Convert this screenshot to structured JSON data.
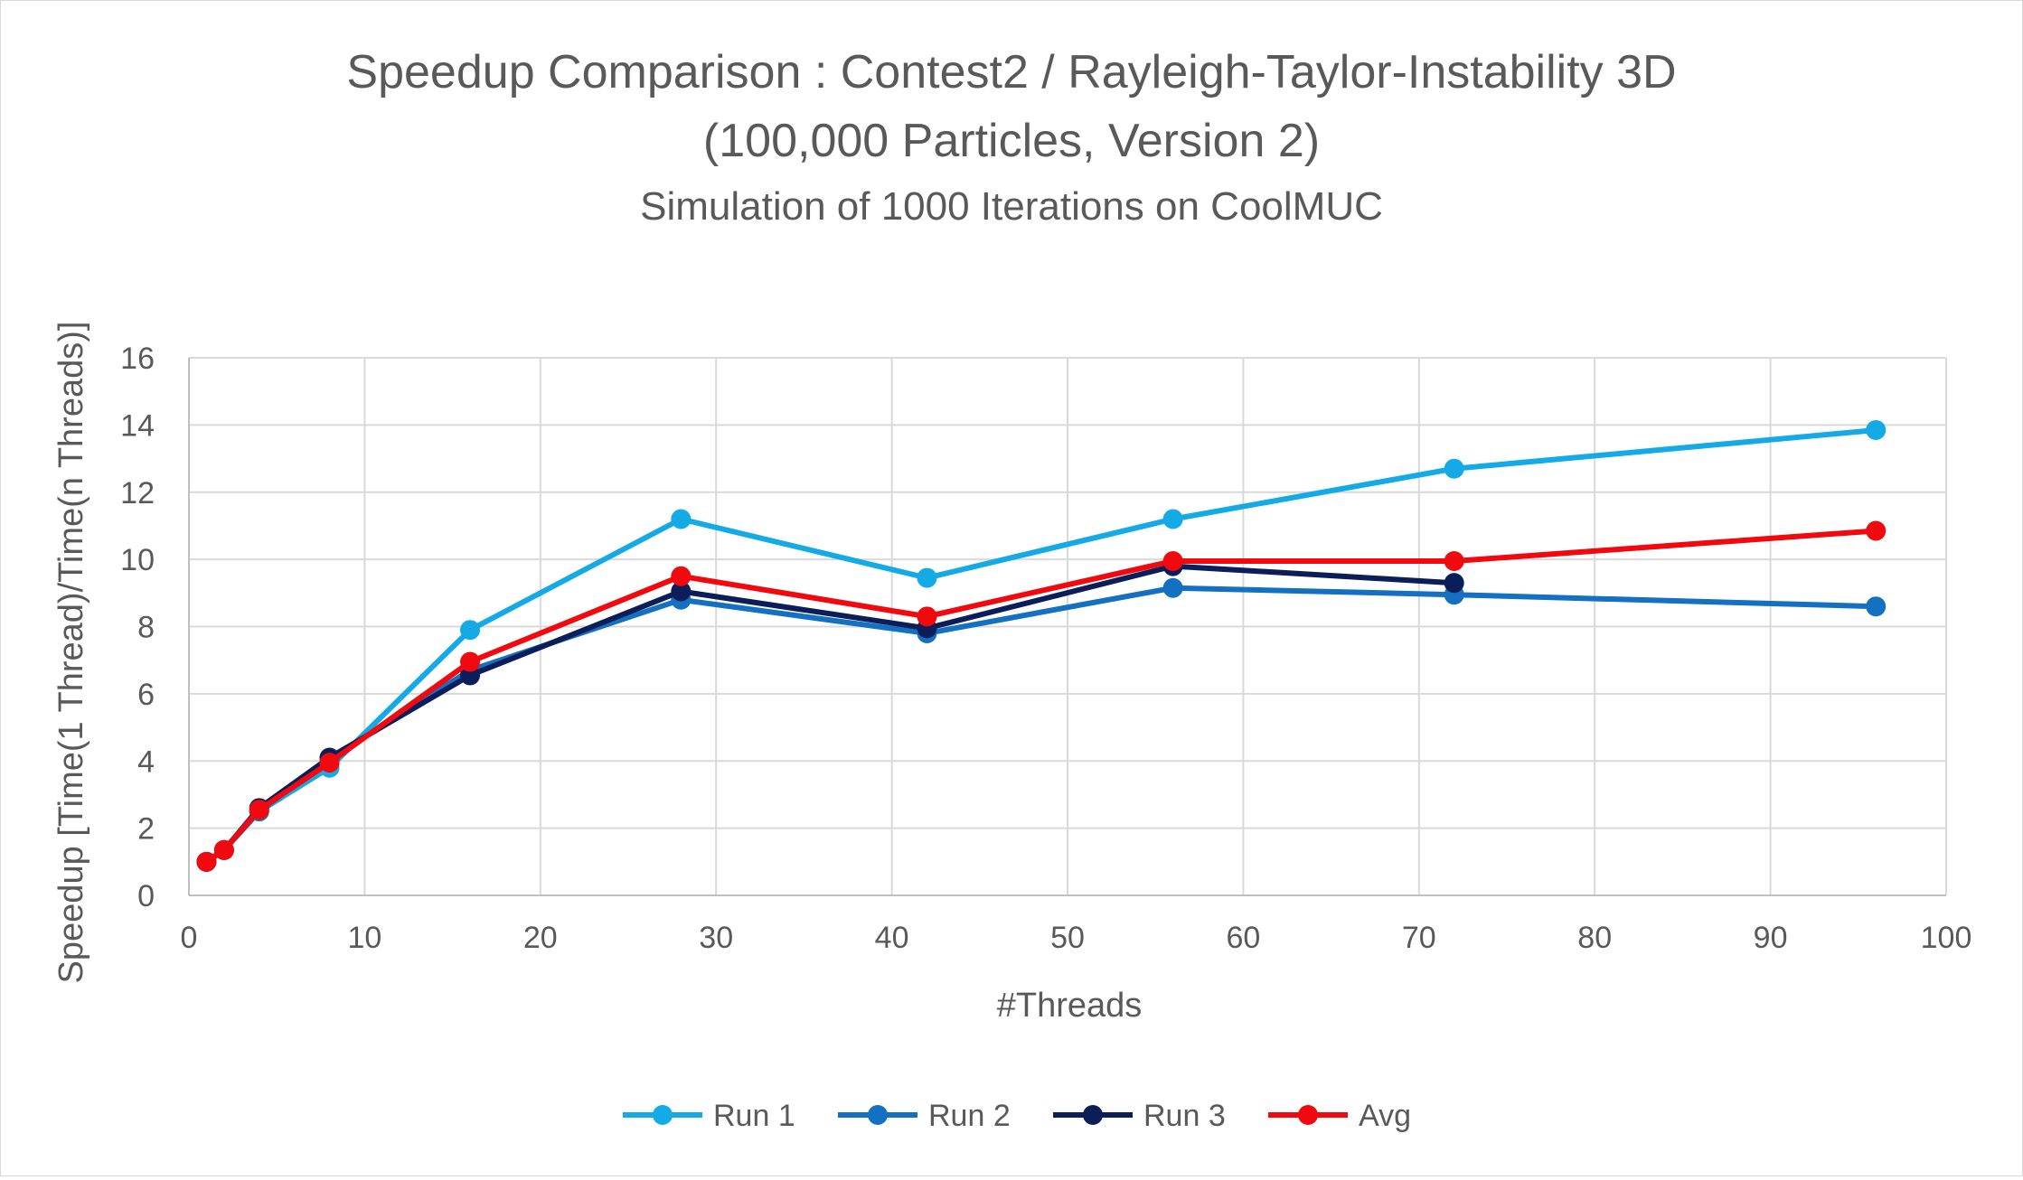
{
  "chart_data": {
    "type": "line",
    "title": "Speedup Comparison : Contest2 / Rayleigh-Taylor-Instability 3D",
    "title_line2": "(100,000 Particles, Version 2)",
    "subtitle": "Simulation of 1000 Iterations on CoolMUC",
    "xlabel": "#Threads",
    "ylabel": "Speedup [Time(1 Thread)/Time(n Threads)]",
    "xlim": [
      0,
      100
    ],
    "ylim": [
      0,
      16
    ],
    "x_ticks": [
      0,
      10,
      20,
      30,
      40,
      50,
      60,
      70,
      80,
      90,
      100
    ],
    "y_ticks": [
      0,
      2,
      4,
      6,
      8,
      10,
      12,
      14,
      16
    ],
    "grid": true,
    "legend_position": "bottom",
    "series": [
      {
        "name": "Run 1",
        "color": "#14aae6",
        "points": [
          [
            1,
            1.0
          ],
          [
            2,
            1.35
          ],
          [
            4,
            2.5
          ],
          [
            8,
            3.8
          ],
          [
            16,
            7.9
          ],
          [
            28,
            11.2
          ],
          [
            42,
            9.45
          ],
          [
            56,
            11.2
          ],
          [
            72,
            12.7
          ],
          [
            96,
            13.85
          ]
        ]
      },
      {
        "name": "Run 2",
        "color": "#1470c0",
        "points": [
          [
            1,
            1.0
          ],
          [
            2,
            1.35
          ],
          [
            4,
            2.5
          ],
          [
            8,
            4.05
          ],
          [
            16,
            6.7
          ],
          [
            28,
            8.8
          ],
          [
            42,
            7.8
          ],
          [
            56,
            9.15
          ],
          [
            72,
            8.95
          ],
          [
            96,
            8.6
          ]
        ]
      },
      {
        "name": "Run 3",
        "color": "#0c1e5a",
        "points": [
          [
            1,
            1.0
          ],
          [
            2,
            1.35
          ],
          [
            4,
            2.6
          ],
          [
            8,
            4.1
          ],
          [
            16,
            6.55
          ],
          [
            28,
            9.05
          ],
          [
            42,
            7.95
          ],
          [
            56,
            9.8
          ],
          [
            72,
            9.3
          ]
        ]
      },
      {
        "name": "Avg",
        "color": "#f00a0f",
        "points": [
          [
            1,
            1.0
          ],
          [
            2,
            1.35
          ],
          [
            4,
            2.55
          ],
          [
            8,
            3.95
          ],
          [
            16,
            6.95
          ],
          [
            28,
            9.5
          ],
          [
            42,
            8.3
          ],
          [
            56,
            9.95
          ],
          [
            72,
            9.95
          ],
          [
            96,
            10.85
          ]
        ]
      }
    ]
  }
}
